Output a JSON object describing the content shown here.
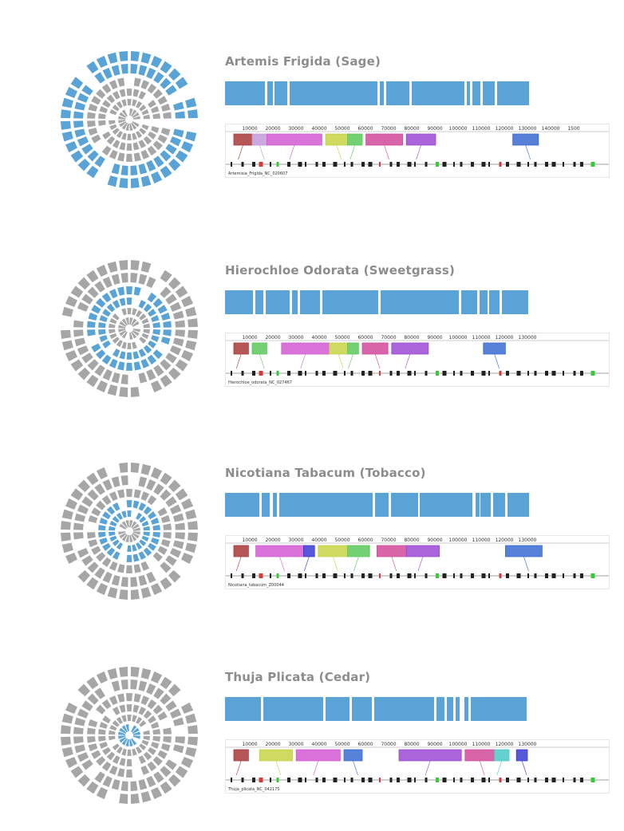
{
  "colors": {
    "blue": "#5aa3d6",
    "gray": "#a6a6a6",
    "title": "#8c8c8c"
  },
  "panels": [
    {
      "title": "Artemis Frigida (Sage)",
      "highlight_ring": "outer",
      "ruler_ticks": [
        "10000",
        "20000",
        "30000",
        "40000",
        "50000",
        "60000",
        "70000",
        "80000",
        "90000",
        "100000",
        "110000",
        "120000",
        "130000",
        "140000",
        "1500"
      ],
      "sequence_label": "Artemisia_Frigida_NC_020607",
      "blocks": [
        {
          "color": "#a83a3a",
          "start": 0.0,
          "end": 0.05
        },
        {
          "color": "#c29ad8",
          "start": 0.05,
          "end": 0.09
        },
        {
          "color": "#d25ad2",
          "start": 0.09,
          "end": 0.24
        },
        {
          "color": "#c8d244",
          "start": 0.25,
          "end": 0.31
        },
        {
          "color": "#5ac85a",
          "start": 0.31,
          "end": 0.35
        },
        {
          "color": "#d24a9a",
          "start": 0.36,
          "end": 0.46
        },
        {
          "color": "#9a4ad2",
          "start": 0.47,
          "end": 0.55
        },
        {
          "color": "#3a6ad2",
          "start": 0.76,
          "end": 0.83
        }
      ]
    },
    {
      "title": "Hierochloe Odorata (Sweetgrass)",
      "highlight_ring": "middle",
      "ruler_ticks": [
        "10000",
        "20000",
        "30000",
        "40000",
        "50000",
        "60000",
        "70000",
        "80000",
        "90000",
        "100000",
        "110000",
        "120000",
        "130000"
      ],
      "sequence_label": "Hierochloe_odorata_NC_027467",
      "blocks": [
        {
          "color": "#a83a3a",
          "start": 0.0,
          "end": 0.04
        },
        {
          "color": "#5ac85a",
          "start": 0.05,
          "end": 0.09
        },
        {
          "color": "#d25ad2",
          "start": 0.13,
          "end": 0.26
        },
        {
          "color": "#c8d244",
          "start": 0.26,
          "end": 0.31
        },
        {
          "color": "#5ac85a",
          "start": 0.31,
          "end": 0.34
        },
        {
          "color": "#d24a9a",
          "start": 0.35,
          "end": 0.42
        },
        {
          "color": "#9a4ad2",
          "start": 0.43,
          "end": 0.53
        },
        {
          "color": "#3a6ad2",
          "start": 0.68,
          "end": 0.74
        }
      ]
    },
    {
      "title": "Nicotiana Tabacum (Tobacco)",
      "highlight_ring": "inner",
      "ruler_ticks": [
        "10000",
        "20000",
        "30000",
        "40000",
        "50000",
        "60000",
        "70000",
        "80000",
        "90000",
        "100000",
        "110000",
        "120000",
        "130000"
      ],
      "sequence_label": "Nicotiana_tabacum_Z00044",
      "blocks": [
        {
          "color": "#a83a3a",
          "start": 0.0,
          "end": 0.04
        },
        {
          "color": "#d25ad2",
          "start": 0.06,
          "end": 0.19
        },
        {
          "color": "#3a3ad2",
          "start": 0.19,
          "end": 0.22
        },
        {
          "color": "#c8d244",
          "start": 0.23,
          "end": 0.31
        },
        {
          "color": "#5ac85a",
          "start": 0.31,
          "end": 0.37
        },
        {
          "color": "#d24a9a",
          "start": 0.39,
          "end": 0.47
        },
        {
          "color": "#9a4ad2",
          "start": 0.47,
          "end": 0.56
        },
        {
          "color": "#3a6ad2",
          "start": 0.74,
          "end": 0.84
        }
      ]
    },
    {
      "title": "Thuja Plicata (Cedar)",
      "highlight_ring": "center",
      "ruler_ticks": [
        "10000",
        "20000",
        "30000",
        "40000",
        "50000",
        "60000",
        "70000",
        "80000",
        "90000",
        "100000",
        "110000",
        "120000",
        "130000"
      ],
      "sequence_label": "Thuja_plicata_NC_042175",
      "blocks": [
        {
          "color": "#a83a3a",
          "start": 0.0,
          "end": 0.04
        },
        {
          "color": "#c8d244",
          "start": 0.07,
          "end": 0.16
        },
        {
          "color": "#d25ad2",
          "start": 0.17,
          "end": 0.29
        },
        {
          "color": "#3a6ad2",
          "start": 0.3,
          "end": 0.35
        },
        {
          "color": "#9a4ad2",
          "start": 0.45,
          "end": 0.62
        },
        {
          "color": "#d24a9a",
          "start": 0.63,
          "end": 0.71
        },
        {
          "color": "#4ac8c8",
          "start": 0.71,
          "end": 0.75
        },
        {
          "color": "#3a3ad2",
          "start": 0.77,
          "end": 0.8
        }
      ]
    }
  ]
}
